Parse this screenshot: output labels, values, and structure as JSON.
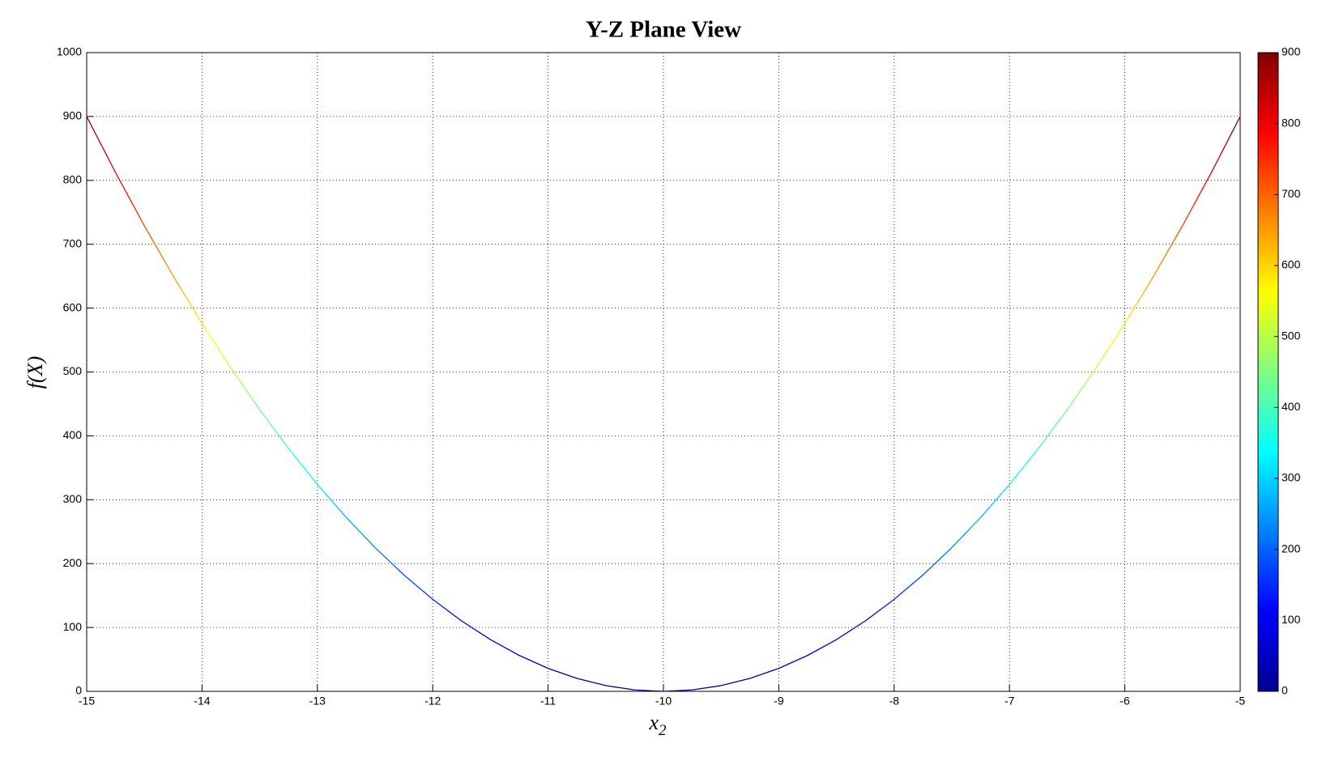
{
  "chart_data": {
    "type": "line",
    "title": "Y-Z Plane View",
    "xlabel": "x",
    "xlabel_sub": "2",
    "ylabel": "f(X)",
    "x": [
      -15,
      -14.75,
      -14.5,
      -14.25,
      -14,
      -13.75,
      -13.5,
      -13.25,
      -13,
      -12.75,
      -12.5,
      -12.25,
      -12,
      -11.75,
      -11.5,
      -11.25,
      -11,
      -10.75,
      -10.5,
      -10.25,
      -10,
      -9.75,
      -9.5,
      -9.25,
      -9,
      -8.75,
      -8.5,
      -8.25,
      -8,
      -7.75,
      -7.5,
      -7.25,
      -7,
      -6.75,
      -6.5,
      -6.25,
      -6,
      -5.75,
      -5.5,
      -5.25,
      -5
    ],
    "values": [
      900,
      812.25,
      729,
      650.25,
      576,
      506.25,
      441,
      380.25,
      324,
      272.25,
      225,
      182.25,
      144,
      110.25,
      81,
      56.25,
      36,
      20.25,
      9,
      2.25,
      0,
      2.25,
      9,
      20.25,
      36,
      56.25,
      81,
      110.25,
      144,
      182.25,
      225,
      272.25,
      324,
      380.25,
      441,
      506.25,
      576,
      650.25,
      729,
      812.25,
      900
    ],
    "colormap": "jet",
    "xlim": [
      -15,
      -5
    ],
    "xticks": [
      -15,
      -14,
      -13,
      -12,
      -11,
      -10,
      -9,
      -8,
      -7,
      -6,
      -5
    ],
    "ylim": [
      0,
      1000
    ],
    "yticks": [
      0,
      100,
      200,
      300,
      400,
      500,
      600,
      700,
      800,
      900,
      1000
    ],
    "grid": true,
    "colorbar": {
      "clim": [
        0,
        900
      ],
      "ticks": [
        0,
        100,
        200,
        300,
        400,
        500,
        600,
        700,
        800,
        900
      ]
    }
  }
}
